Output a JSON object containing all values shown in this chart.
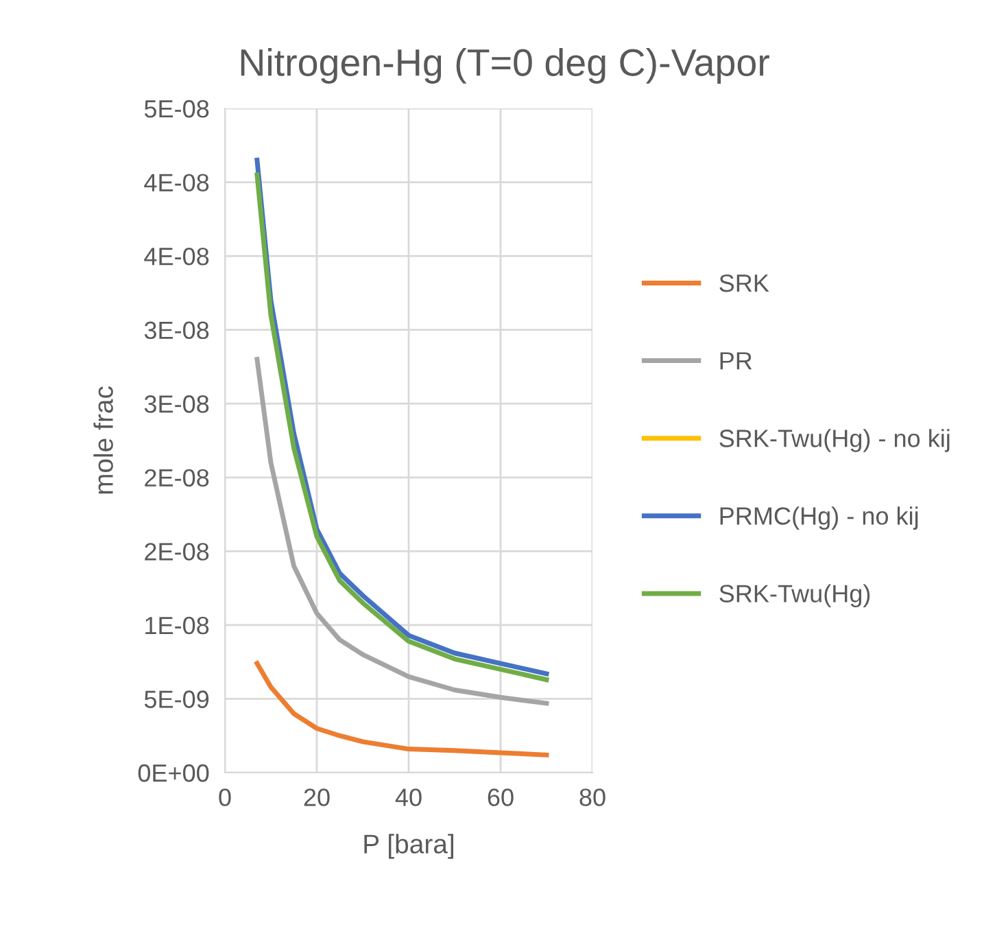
{
  "chart_data": {
    "type": "line",
    "title": "Nitrogen-Hg (T=0 deg C)-Vapor",
    "xlabel": "P [bara]",
    "ylabel": "mole frac",
    "x": [
      7,
      10,
      15,
      20,
      25,
      30,
      40,
      50,
      60,
      70
    ],
    "series": [
      {
        "name": "SRK",
        "color": "#ed7d31",
        "values": [
          7.4e-09,
          5.8e-09,
          4e-09,
          3e-09,
          2.5e-09,
          2.1e-09,
          1.6e-09,
          1.5e-09,
          1.35e-09,
          1.2e-09
        ]
      },
      {
        "name": "PR",
        "color": "#a5a5a5",
        "values": [
          2.8e-08,
          2.1e-08,
          1.4e-08,
          1.08e-08,
          9e-09,
          8e-09,
          6.5e-09,
          5.6e-09,
          5.1e-09,
          4.7e-09
        ]
      },
      {
        "name": "SRK-Twu(Hg) - no kij",
        "color": "#ffc000",
        "values": [
          null,
          null,
          null,
          null,
          null,
          null,
          null,
          null,
          null,
          null
        ]
      },
      {
        "name": "PRMC(Hg) - no kij",
        "color": "#4472c4",
        "values": [
          4.15e-08,
          3.2e-08,
          2.3e-08,
          1.65e-08,
          1.35e-08,
          1.2e-08,
          9.3e-09,
          8.1e-09,
          7.4e-09,
          6.7e-09
        ]
      },
      {
        "name": "SRK-Twu(Hg)",
        "color": "#70ad47",
        "values": [
          4.05e-08,
          3.1e-08,
          2.2e-08,
          1.6e-08,
          1.3e-08,
          1.15e-08,
          8.9e-09,
          7.7e-09,
          7e-09,
          6.3e-09
        ]
      }
    ],
    "xlim": [
      0,
      80
    ],
    "xticks": [
      0,
      20,
      40,
      60,
      80
    ],
    "ylim": [
      0,
      4.5e-08
    ],
    "yticks": [
      {
        "value": 0,
        "label": "0E+00"
      },
      {
        "value": 5e-09,
        "label": "5E-09"
      },
      {
        "value": 1e-08,
        "label": "1E-08"
      },
      {
        "value": 1.5e-08,
        "label": "2E-08"
      },
      {
        "value": 2e-08,
        "label": "2E-08"
      },
      {
        "value": 2.5e-08,
        "label": "3E-08"
      },
      {
        "value": 3e-08,
        "label": "3E-08"
      },
      {
        "value": 3.5e-08,
        "label": "4E-08"
      },
      {
        "value": 4e-08,
        "label": "4E-08"
      },
      {
        "value": 4.5e-08,
        "label": "5E-08"
      }
    ],
    "grid": true,
    "legend": "right",
    "marker": "none",
    "line_style": "solid"
  }
}
